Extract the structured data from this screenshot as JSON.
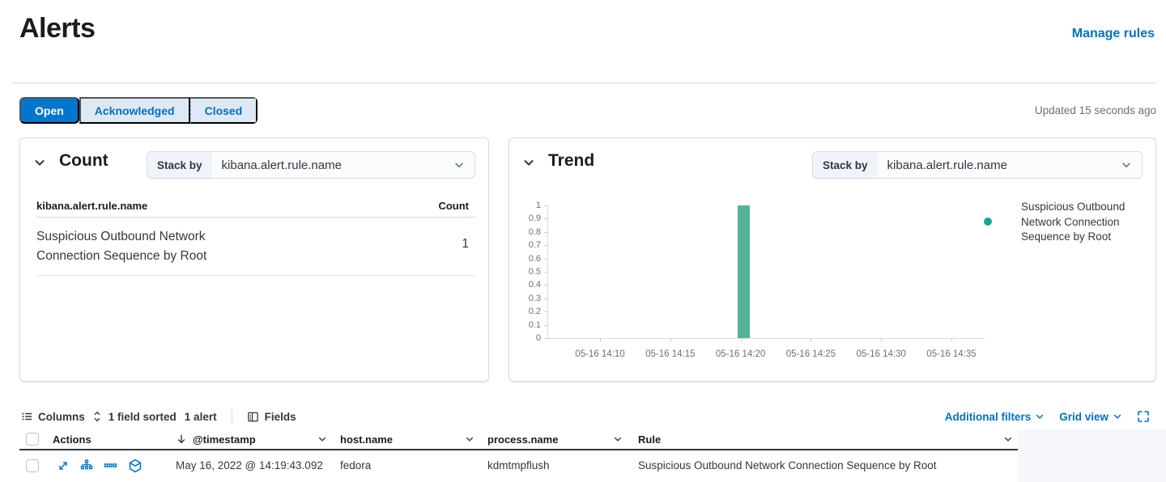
{
  "page": {
    "title": "Alerts",
    "manage_rules_label": "Manage rules",
    "updated_text": "Updated 15 seconds ago"
  },
  "status_filter": {
    "tabs": [
      {
        "label": "Open",
        "selected": true
      },
      {
        "label": "Acknowledged",
        "selected": false
      },
      {
        "label": "Closed",
        "selected": false
      }
    ]
  },
  "count_panel": {
    "title": "Count",
    "stack_by_label": "Stack by",
    "stack_by_value": "kibana.alert.rule.name",
    "table": {
      "field_header": "kibana.alert.rule.name",
      "count_header": "Count",
      "rows": [
        {
          "field": "Suspicious Outbound Network Connection Sequence by Root",
          "count": "1"
        }
      ]
    }
  },
  "trend_panel": {
    "title": "Trend",
    "stack_by_label": "Stack by",
    "stack_by_value": "kibana.alert.rule.name"
  },
  "chart_data": {
    "type": "bar",
    "title": "Trend",
    "xlabel": "",
    "ylabel": "",
    "ylim": [
      0,
      1
    ],
    "grid": false,
    "legend_position": "right",
    "y_ticks": [
      0,
      0.1,
      0.2,
      0.3,
      0.4,
      0.5,
      0.6,
      0.7,
      0.8,
      0.9,
      1
    ],
    "x_tick_labels": [
      "05-16 14:10",
      "05-16 14:15",
      "05-16 14:20",
      "05-16 14:25",
      "05-16 14:30",
      "05-16 14:35"
    ],
    "series": [
      {
        "name": "Suspicious Outbound Network Connection Sequence by Root",
        "color": "#54B399",
        "points": [
          {
            "x": "05-16 14:19:43",
            "y": 1
          }
        ]
      }
    ]
  },
  "grid_toolbar": {
    "columns_label": "Columns",
    "sorted_label": "1 field sorted",
    "alert_count_label": "1 alert",
    "fields_label": "Fields",
    "additional_filters_label": "Additional filters",
    "grid_view_label": "Grid view"
  },
  "alerts_table": {
    "headers": {
      "actions": "Actions",
      "timestamp": "@timestamp",
      "host": "host.name",
      "process": "process.name",
      "rule": "Rule"
    },
    "rows": [
      {
        "timestamp": "May 16, 2022 @ 14:19:43.092",
        "host": "fedora",
        "process": "kdmtmpflush",
        "rule": "Suspicious Outbound Network Connection Sequence by Root"
      }
    ]
  },
  "colors": {
    "primary": "#0077CC",
    "link": "#0071C2",
    "bar": "#54B399",
    "legend_dot": "#15A68C",
    "text": "#343741",
    "subtle_text": "#69707D",
    "border": "#D3DAE6"
  }
}
